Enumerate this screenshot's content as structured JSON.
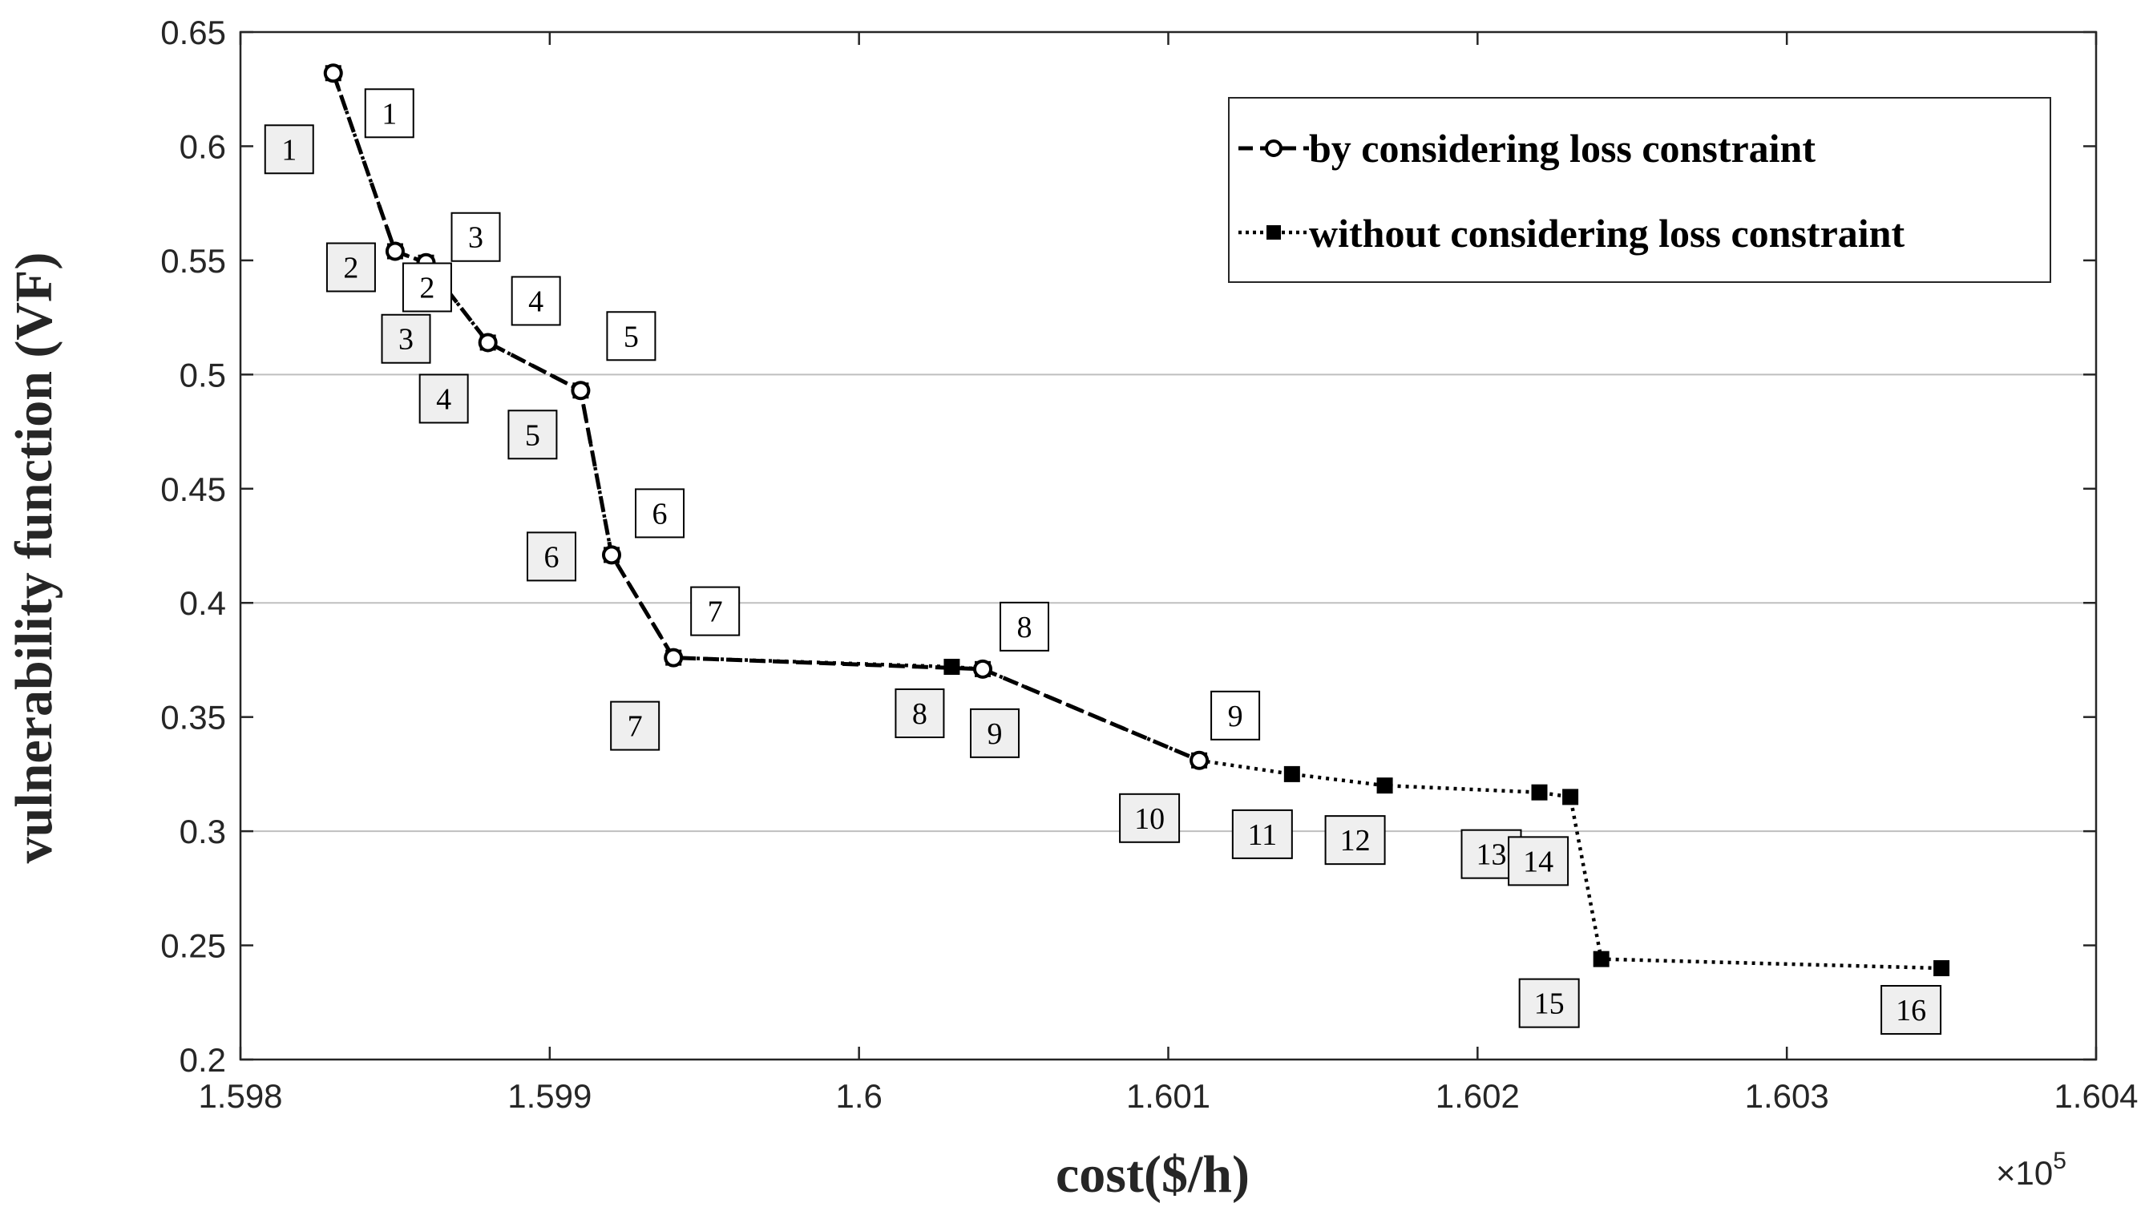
{
  "chart_data": {
    "type": "line",
    "xlabel": "cost($/h)",
    "ylabel": "vulnerability function (VF)",
    "x_exponent_label": "×10",
    "x_exponent_power": "5",
    "xlim": [
      1.598,
      1.604
    ],
    "ylim": [
      0.2,
      0.65
    ],
    "x_ticks": [
      1.598,
      1.599,
      1.6,
      1.601,
      1.602,
      1.603,
      1.604
    ],
    "x_tick_labels": [
      "1.598",
      "1.599",
      "1.6",
      "1.601",
      "1.602",
      "1.603",
      "1.604"
    ],
    "y_ticks": [
      0.2,
      0.25,
      0.3,
      0.35,
      0.4,
      0.45,
      0.5,
      0.55,
      0.6,
      0.65
    ],
    "y_tick_labels": [
      "0.2",
      "0.25",
      "0.3",
      "0.35",
      "0.4",
      "0.45",
      "0.5",
      "0.55",
      "0.6",
      "0.65"
    ],
    "grid_y": [
      0.3,
      0.4,
      0.5
    ],
    "legend_position": "top-right",
    "series": [
      {
        "name": "by considering loss constraint",
        "style": "dashed",
        "marker": "open-circle",
        "color": "#000000",
        "x": [
          1.5983,
          1.5985,
          1.5986,
          1.5988,
          1.5991,
          1.5992,
          1.5994,
          1.6004,
          1.6011
        ],
        "y": [
          0.632,
          0.554,
          0.549,
          0.514,
          0.493,
          0.421,
          0.376,
          0.371,
          0.331
        ],
        "labels": [
          "1",
          "2",
          "3",
          "4",
          "5",
          "6",
          "7",
          "8",
          "9"
        ]
      },
      {
        "name": "without considering loss constraint",
        "style": "dotted",
        "marker": "filled-square",
        "color": "#000000",
        "x": [
          1.5983,
          1.5985,
          1.5986,
          1.5988,
          1.5991,
          1.5992,
          1.5994,
          1.6003,
          1.6004,
          1.6011,
          1.6014,
          1.6017,
          1.6022,
          1.6023,
          1.6024,
          1.6035
        ],
        "y": [
          0.632,
          0.554,
          0.549,
          0.514,
          0.493,
          0.421,
          0.376,
          0.372,
          0.371,
          0.331,
          0.325,
          0.32,
          0.317,
          0.315,
          0.244,
          0.24
        ],
        "labels": [
          "1",
          "2",
          "3",
          "4",
          "5",
          "6",
          "7",
          "8",
          "9",
          "10",
          "11",
          "12",
          "13",
          "14",
          "15",
          "16"
        ]
      }
    ]
  }
}
